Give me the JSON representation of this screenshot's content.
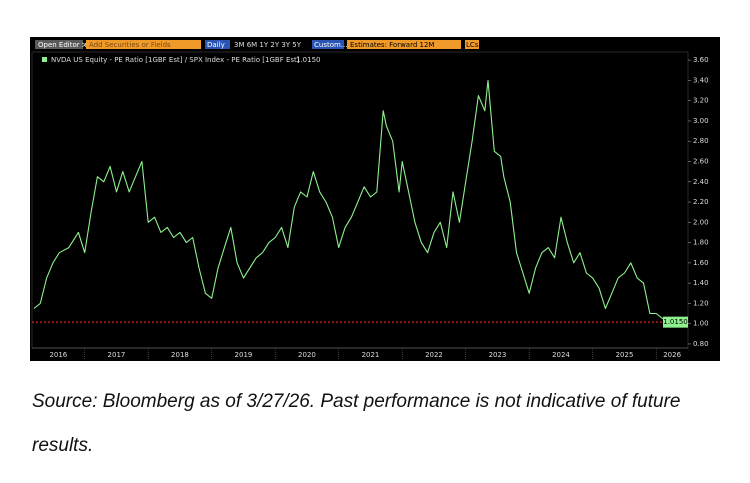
{
  "toolbar": {
    "editor": "Open Editor ≫",
    "search": "Add Securities or Fields",
    "frequency": "Daily",
    "periods": "3M  6M  1Y  2Y  3Y  5Y",
    "custom": "Custom...",
    "estimates": "Estimates: Forward 12M",
    "currency": "LCs"
  },
  "chart_data": {
    "type": "line",
    "xlim": [
      2016.17,
      2026.5
    ],
    "xticks": [
      2016,
      2017,
      2018,
      2019,
      2020,
      2021,
      2022,
      2023,
      2024,
      2025,
      2026
    ],
    "ylim": [
      0.76,
      3.68
    ],
    "yticks": [
      {
        "value": 0.8,
        "label": "0.80"
      },
      {
        "value": 1.0,
        "label": "1.00"
      },
      {
        "value": 1.2,
        "label": "1.20"
      },
      {
        "value": 1.4,
        "label": "1.40"
      },
      {
        "value": 1.6,
        "label": "1.60"
      },
      {
        "value": 1.8,
        "label": "1.80"
      },
      {
        "value": 2.0,
        "label": "2.00"
      },
      {
        "value": 2.2,
        "label": "2.20"
      },
      {
        "value": 2.4,
        "label": "2.40"
      },
      {
        "value": 2.6,
        "label": "2.60"
      },
      {
        "value": 2.8,
        "label": "2.80"
      },
      {
        "value": 3.0,
        "label": "3.00"
      },
      {
        "value": 3.2,
        "label": "3.20"
      },
      {
        "value": 3.4,
        "label": "3.40"
      },
      {
        "value": 3.6,
        "label": "3.60"
      }
    ],
    "series": [
      {
        "name": "NVDA US Equity - PE Ratio [1GBF Est] / SPX Index - PE Ratio [1GBF Est]",
        "color": "#8ef08e",
        "last_value": 1.015,
        "last_label": "1.0150",
        "x": [
          2016.2,
          2016.3,
          2016.4,
          2016.5,
          2016.6,
          2016.75,
          2016.9,
          2017.0,
          2017.1,
          2017.2,
          2017.3,
          2017.4,
          2017.5,
          2017.6,
          2017.7,
          2017.8,
          2017.9,
          2018.0,
          2018.1,
          2018.2,
          2018.3,
          2018.4,
          2018.5,
          2018.6,
          2018.7,
          2018.8,
          2018.9,
          2019.0,
          2019.1,
          2019.2,
          2019.3,
          2019.4,
          2019.5,
          2019.6,
          2019.7,
          2019.8,
          2019.9,
          2020.0,
          2020.1,
          2020.2,
          2020.3,
          2020.4,
          2020.5,
          2020.6,
          2020.7,
          2020.8,
          2020.9,
          2021.0,
          2021.1,
          2021.2,
          2021.3,
          2021.4,
          2021.5,
          2021.6,
          2021.7,
          2021.75,
          2021.85,
          2021.95,
          2022.0,
          2022.1,
          2022.2,
          2022.3,
          2022.4,
          2022.5,
          2022.6,
          2022.7,
          2022.8,
          2022.9,
          2023.0,
          2023.1,
          2023.2,
          2023.3,
          2023.35,
          2023.45,
          2023.55,
          2023.6,
          2023.7,
          2023.8,
          2023.9,
          2024.0,
          2024.1,
          2024.2,
          2024.3,
          2024.4,
          2024.5,
          2024.6,
          2024.7,
          2024.8,
          2024.9,
          2025.0,
          2025.1,
          2025.2,
          2025.3,
          2025.4,
          2025.5,
          2025.6,
          2025.7,
          2025.8,
          2025.9,
          2026.0,
          2026.1,
          2026.24
        ],
        "values": [
          1.15,
          1.2,
          1.45,
          1.6,
          1.7,
          1.75,
          1.9,
          1.7,
          2.1,
          2.45,
          2.4,
          2.55,
          2.3,
          2.5,
          2.3,
          2.45,
          2.6,
          2.0,
          2.05,
          1.9,
          1.95,
          1.85,
          1.9,
          1.8,
          1.85,
          1.55,
          1.3,
          1.25,
          1.55,
          1.75,
          1.95,
          1.6,
          1.45,
          1.55,
          1.65,
          1.7,
          1.8,
          1.85,
          1.95,
          1.75,
          2.15,
          2.3,
          2.25,
          2.5,
          2.3,
          2.2,
          2.05,
          1.75,
          1.95,
          2.05,
          2.2,
          2.35,
          2.25,
          2.3,
          3.1,
          2.95,
          2.8,
          2.3,
          2.6,
          2.3,
          2.0,
          1.8,
          1.7,
          1.9,
          2.0,
          1.75,
          2.3,
          2.0,
          2.4,
          2.8,
          3.25,
          3.1,
          3.4,
          2.7,
          2.65,
          2.45,
          2.2,
          1.7,
          1.5,
          1.3,
          1.55,
          1.7,
          1.75,
          1.65,
          2.05,
          1.8,
          1.6,
          1.7,
          1.5,
          1.45,
          1.35,
          1.15,
          1.3,
          1.45,
          1.5,
          1.6,
          1.45,
          1.4,
          1.1,
          1.1,
          1.05,
          1.015
        ]
      }
    ]
  },
  "caption": "Source: Bloomberg as of 3/27/26. Past performance is not indicative of future results."
}
